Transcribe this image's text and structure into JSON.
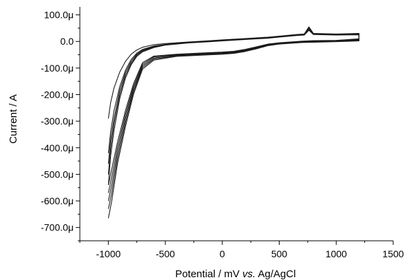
{
  "chart_data": {
    "type": "line",
    "title": "",
    "xlabel": "Potential / mV vs. Ag/AgCl",
    "xlabel_parts": [
      "Potential / mV ",
      "vs.",
      " Ag/AgCl"
    ],
    "ylabel": "Current / A",
    "xlim": [
      -1250,
      1500
    ],
    "ylim": [
      -750,
      130
    ],
    "x_ticks": [
      {
        "value": -1000,
        "label": "-1000"
      },
      {
        "value": -500,
        "label": "-500"
      },
      {
        "value": 0,
        "label": "0"
      },
      {
        "value": 500,
        "label": "500"
      },
      {
        "value": 1000,
        "label": "1000"
      },
      {
        "value": 1500,
        "label": "1500"
      }
    ],
    "y_ticks": [
      {
        "value": 100,
        "label": "100.0μ"
      },
      {
        "value": 0,
        "label": "0.0"
      },
      {
        "value": -100,
        "label": "-100.0μ"
      },
      {
        "value": -200,
        "label": "-200.0μ"
      },
      {
        "value": -300,
        "label": "-300.0μ"
      },
      {
        "value": -400,
        "label": "-400.0μ"
      },
      {
        "value": -500,
        "label": "-500.0μ"
      },
      {
        "value": -600,
        "label": "-600.0μ"
      },
      {
        "value": -700,
        "label": "-700.0μ"
      }
    ],
    "grid": false,
    "legend": "none",
    "line_color": "#1a1a1a",
    "series": [
      {
        "values": [
          [
            -1000,
            -290
          ],
          [
            -980,
            -230
          ],
          [
            -950,
            -175
          ],
          [
            -900,
            -115
          ],
          [
            -850,
            -75
          ],
          [
            -800,
            -48
          ],
          [
            -750,
            -32
          ],
          [
            -700,
            -22
          ],
          [
            -600,
            -12
          ],
          [
            -500,
            -8
          ],
          [
            -300,
            -2
          ],
          [
            -100,
            3
          ],
          [
            0,
            6
          ],
          [
            200,
            11
          ],
          [
            400,
            16
          ],
          [
            500,
            20
          ],
          [
            650,
            26
          ],
          [
            720,
            28
          ],
          [
            760,
            55
          ],
          [
            800,
            30
          ],
          [
            1000,
            28
          ],
          [
            1200,
            30
          ],
          [
            1200,
            10
          ],
          [
            1000,
            4
          ],
          [
            800,
            3
          ],
          [
            700,
            1
          ],
          [
            500,
            -5
          ],
          [
            400,
            -10
          ],
          [
            300,
            -20
          ],
          [
            200,
            -30
          ],
          [
            100,
            -37
          ],
          [
            0,
            -40
          ],
          [
            -200,
            -44
          ],
          [
            -400,
            -48
          ],
          [
            -600,
            -55
          ],
          [
            -700,
            -80
          ],
          [
            -780,
            -160
          ],
          [
            -850,
            -260
          ],
          [
            -920,
            -380
          ],
          [
            -970,
            -480
          ],
          [
            -1000,
            -540
          ]
        ]
      },
      {
        "values": [
          [
            -1000,
            -420
          ],
          [
            -980,
            -340
          ],
          [
            -950,
            -260
          ],
          [
            -900,
            -170
          ],
          [
            -850,
            -108
          ],
          [
            -800,
            -68
          ],
          [
            -750,
            -44
          ],
          [
            -700,
            -30
          ],
          [
            -600,
            -17
          ],
          [
            -500,
            -11
          ],
          [
            -300,
            -3
          ],
          [
            -100,
            2
          ],
          [
            0,
            5
          ],
          [
            200,
            10
          ],
          [
            400,
            15
          ],
          [
            500,
            19
          ],
          [
            650,
            25
          ],
          [
            720,
            27
          ],
          [
            760,
            52
          ],
          [
            800,
            29
          ],
          [
            1000,
            27
          ],
          [
            1200,
            28
          ],
          [
            1200,
            8
          ],
          [
            1000,
            2
          ],
          [
            800,
            1
          ],
          [
            700,
            0
          ],
          [
            500,
            -7
          ],
          [
            400,
            -12
          ],
          [
            300,
            -22
          ],
          [
            200,
            -32
          ],
          [
            100,
            -39
          ],
          [
            0,
            -42
          ],
          [
            -200,
            -46
          ],
          [
            -400,
            -50
          ],
          [
            -600,
            -58
          ],
          [
            -700,
            -86
          ],
          [
            -780,
            -170
          ],
          [
            -850,
            -275
          ],
          [
            -920,
            -400
          ],
          [
            -970,
            -510
          ],
          [
            -1000,
            -570
          ]
        ]
      },
      {
        "values": [
          [
            -1000,
            -460
          ],
          [
            -980,
            -370
          ],
          [
            -950,
            -290
          ],
          [
            -900,
            -185
          ],
          [
            -850,
            -118
          ],
          [
            -800,
            -75
          ],
          [
            -750,
            -48
          ],
          [
            -700,
            -33
          ],
          [
            -600,
            -19
          ],
          [
            -500,
            -12
          ],
          [
            -300,
            -4
          ],
          [
            -100,
            1
          ],
          [
            0,
            4
          ],
          [
            200,
            9
          ],
          [
            400,
            14
          ],
          [
            500,
            18
          ],
          [
            650,
            24
          ],
          [
            720,
            26
          ],
          [
            760,
            48
          ],
          [
            800,
            28
          ],
          [
            1000,
            26
          ],
          [
            1200,
            27
          ],
          [
            1200,
            6
          ],
          [
            1000,
            1
          ],
          [
            800,
            -1
          ],
          [
            700,
            -2
          ],
          [
            500,
            -8
          ],
          [
            400,
            -14
          ],
          [
            300,
            -24
          ],
          [
            200,
            -34
          ],
          [
            100,
            -41
          ],
          [
            0,
            -44
          ],
          [
            -200,
            -48
          ],
          [
            -400,
            -52
          ],
          [
            -600,
            -62
          ],
          [
            -700,
            -92
          ],
          [
            -780,
            -180
          ],
          [
            -850,
            -290
          ],
          [
            -920,
            -420
          ],
          [
            -970,
            -540
          ],
          [
            -1000,
            -600
          ]
        ]
      },
      {
        "values": [
          [
            -1000,
            -500
          ],
          [
            -980,
            -400
          ],
          [
            -950,
            -310
          ],
          [
            -900,
            -200
          ],
          [
            -850,
            -128
          ],
          [
            -800,
            -82
          ],
          [
            -750,
            -52
          ],
          [
            -700,
            -36
          ],
          [
            -600,
            -21
          ],
          [
            -500,
            -13
          ],
          [
            -300,
            -5
          ],
          [
            -100,
            0
          ],
          [
            0,
            3
          ],
          [
            200,
            8
          ],
          [
            400,
            13
          ],
          [
            500,
            17
          ],
          [
            650,
            23
          ],
          [
            720,
            25
          ],
          [
            760,
            45
          ],
          [
            800,
            27
          ],
          [
            1000,
            25
          ],
          [
            1200,
            26
          ],
          [
            1200,
            4
          ],
          [
            1000,
            0
          ],
          [
            800,
            -2
          ],
          [
            700,
            -3
          ],
          [
            500,
            -9
          ],
          [
            400,
            -15
          ],
          [
            300,
            -26
          ],
          [
            200,
            -36
          ],
          [
            100,
            -43
          ],
          [
            0,
            -46
          ],
          [
            -200,
            -50
          ],
          [
            -400,
            -54
          ],
          [
            -600,
            -66
          ],
          [
            -700,
            -98
          ],
          [
            -780,
            -190
          ],
          [
            -850,
            -305
          ],
          [
            -920,
            -440
          ],
          [
            -970,
            -570
          ],
          [
            -1000,
            -630
          ]
        ]
      },
      {
        "values": [
          [
            -1000,
            -540
          ],
          [
            -980,
            -430
          ],
          [
            -950,
            -335
          ],
          [
            -900,
            -215
          ],
          [
            -850,
            -138
          ],
          [
            -800,
            -88
          ],
          [
            -750,
            -56
          ],
          [
            -700,
            -39
          ],
          [
            -600,
            -23
          ],
          [
            -500,
            -14
          ],
          [
            -300,
            -6
          ],
          [
            -100,
            -1
          ],
          [
            0,
            2
          ],
          [
            200,
            7
          ],
          [
            400,
            12
          ],
          [
            500,
            16
          ],
          [
            650,
            22
          ],
          [
            720,
            24
          ],
          [
            760,
            42
          ],
          [
            800,
            26
          ],
          [
            1000,
            24
          ],
          [
            1200,
            25
          ],
          [
            1200,
            2
          ],
          [
            1000,
            -1
          ],
          [
            800,
            -3
          ],
          [
            700,
            -4
          ],
          [
            500,
            -10
          ],
          [
            400,
            -16
          ],
          [
            300,
            -28
          ],
          [
            200,
            -38
          ],
          [
            100,
            -45
          ],
          [
            0,
            -48
          ],
          [
            -200,
            -52
          ],
          [
            -400,
            -56
          ],
          [
            -600,
            -70
          ],
          [
            -700,
            -104
          ],
          [
            -780,
            -200
          ],
          [
            -850,
            -320
          ],
          [
            -920,
            -460
          ],
          [
            -970,
            -600
          ],
          [
            -1000,
            -665
          ]
        ]
      }
    ]
  }
}
